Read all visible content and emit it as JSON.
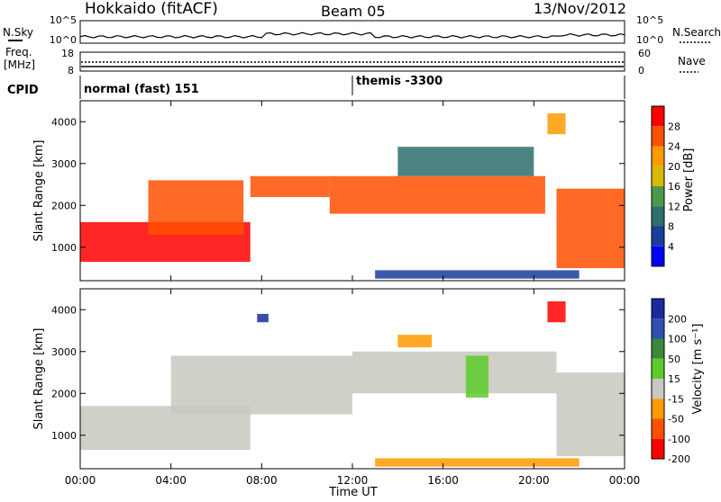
{
  "header": {
    "station": "Hokkaido (fitACF)",
    "beam": "Beam 05",
    "date": "13/Nov/2012"
  },
  "top_panels": {
    "nsky_label": "N.Sky",
    "nsky_ticks": [
      "10^5",
      "10^0"
    ],
    "nsearch_label": "N.Search",
    "nsearch_ticks": [
      "10^5",
      "10^0"
    ],
    "freq_label": "Freq.",
    "freq_unit": "[MHz]",
    "freq_ticks": [
      "18",
      "8"
    ],
    "nave_label": "Nave",
    "nave_ticks": [
      "60",
      "0"
    ],
    "cpid_label": "CPID",
    "cpid_modes": [
      {
        "text": "normal (fast) 151",
        "start_hour": 0
      },
      {
        "text": "themis -3300",
        "start_hour": 12.0
      }
    ]
  },
  "colorbars": {
    "power": {
      "label": "Power [dB]",
      "ticks": [
        "28",
        "24",
        "20",
        "16",
        "12",
        "8",
        "4"
      ],
      "colors": [
        "#ff0000",
        "#ff5000",
        "#ff9a00",
        "#d8b800",
        "#4a9a4a",
        "#2d6e6e",
        "#1a3d9e",
        "#0000ff"
      ]
    },
    "velocity": {
      "label": "Velocity [m s⁻¹]",
      "ticks": [
        "200",
        "100",
        "50",
        "15",
        "-15",
        "-50",
        "-100",
        "-200"
      ],
      "colors": [
        "#1a2a9e",
        "#2e4fb0",
        "#3a8a3a",
        "#5ccc2a",
        "#c8c8c0",
        "#ff9a00",
        "#ff5000",
        "#ff0000"
      ]
    }
  },
  "x_axis": {
    "label": "Time UT",
    "ticks": [
      "00:00",
      "04:00",
      "08:00",
      "12:00",
      "16:00",
      "20:00",
      "00:00"
    ]
  },
  "chart_data": [
    {
      "type": "heatmap",
      "title": "",
      "ylabel": "Slant Range [km]",
      "xlabel": "",
      "xlim_hours": [
        0,
        24
      ],
      "ylim_km": [
        200,
        4500
      ],
      "y_ticks": [
        1000,
        2000,
        3000,
        4000
      ],
      "colorbar": "Power [dB]",
      "colorbar_range_db": [
        0,
        30
      ],
      "regions": [
        {
          "x": [
            0,
            7.5
          ],
          "y": [
            650,
            1600
          ],
          "value": 28
        },
        {
          "x": [
            3,
            7.2
          ],
          "y": [
            1300,
            2600
          ],
          "value": 24
        },
        {
          "x": [
            7.5,
            11
          ],
          "y": [
            2200,
            2700
          ],
          "value": 26
        },
        {
          "x": [
            11,
            20.5
          ],
          "y": [
            1800,
            2700
          ],
          "value": 24
        },
        {
          "x": [
            14,
            20
          ],
          "y": [
            2700,
            3400
          ],
          "value": 10
        },
        {
          "x": [
            21,
            24
          ],
          "y": [
            500,
            2400
          ],
          "value": 26
        },
        {
          "x": [
            20.6,
            21.4
          ],
          "y": [
            3700,
            4200
          ],
          "value": 22
        },
        {
          "x": [
            13,
            22
          ],
          "y": [
            250,
            450
          ],
          "value": 6
        }
      ]
    },
    {
      "type": "heatmap",
      "title": "",
      "ylabel": "Slant Range [km]",
      "xlabel": "Time UT",
      "xlim_hours": [
        0,
        24
      ],
      "ylim_km": [
        200,
        4500
      ],
      "y_ticks": [
        1000,
        2000,
        3000,
        4000
      ],
      "colorbar": "Velocity [m s⁻¹]",
      "colorbar_range_ms": [
        -200,
        200
      ],
      "regions": [
        {
          "x": [
            0,
            7.5
          ],
          "y": [
            650,
            1700
          ],
          "value": 0
        },
        {
          "x": [
            4,
            12
          ],
          "y": [
            1500,
            2900
          ],
          "value": 0
        },
        {
          "x": [
            12,
            21
          ],
          "y": [
            2000,
            3000
          ],
          "value": 0
        },
        {
          "x": [
            14,
            15.5
          ],
          "y": [
            3100,
            3400
          ],
          "value": -70
        },
        {
          "x": [
            17,
            18
          ],
          "y": [
            1900,
            2900
          ],
          "value": 30
        },
        {
          "x": [
            21,
            24
          ],
          "y": [
            500,
            2500
          ],
          "value": 0
        },
        {
          "x": [
            20.6,
            21.4
          ],
          "y": [
            3700,
            4200
          ],
          "value": -200
        },
        {
          "x": [
            7.8,
            8.3
          ],
          "y": [
            3700,
            3900
          ],
          "value": 200
        },
        {
          "x": [
            13,
            22
          ],
          "y": [
            250,
            450
          ],
          "value": -60
        }
      ]
    }
  ]
}
